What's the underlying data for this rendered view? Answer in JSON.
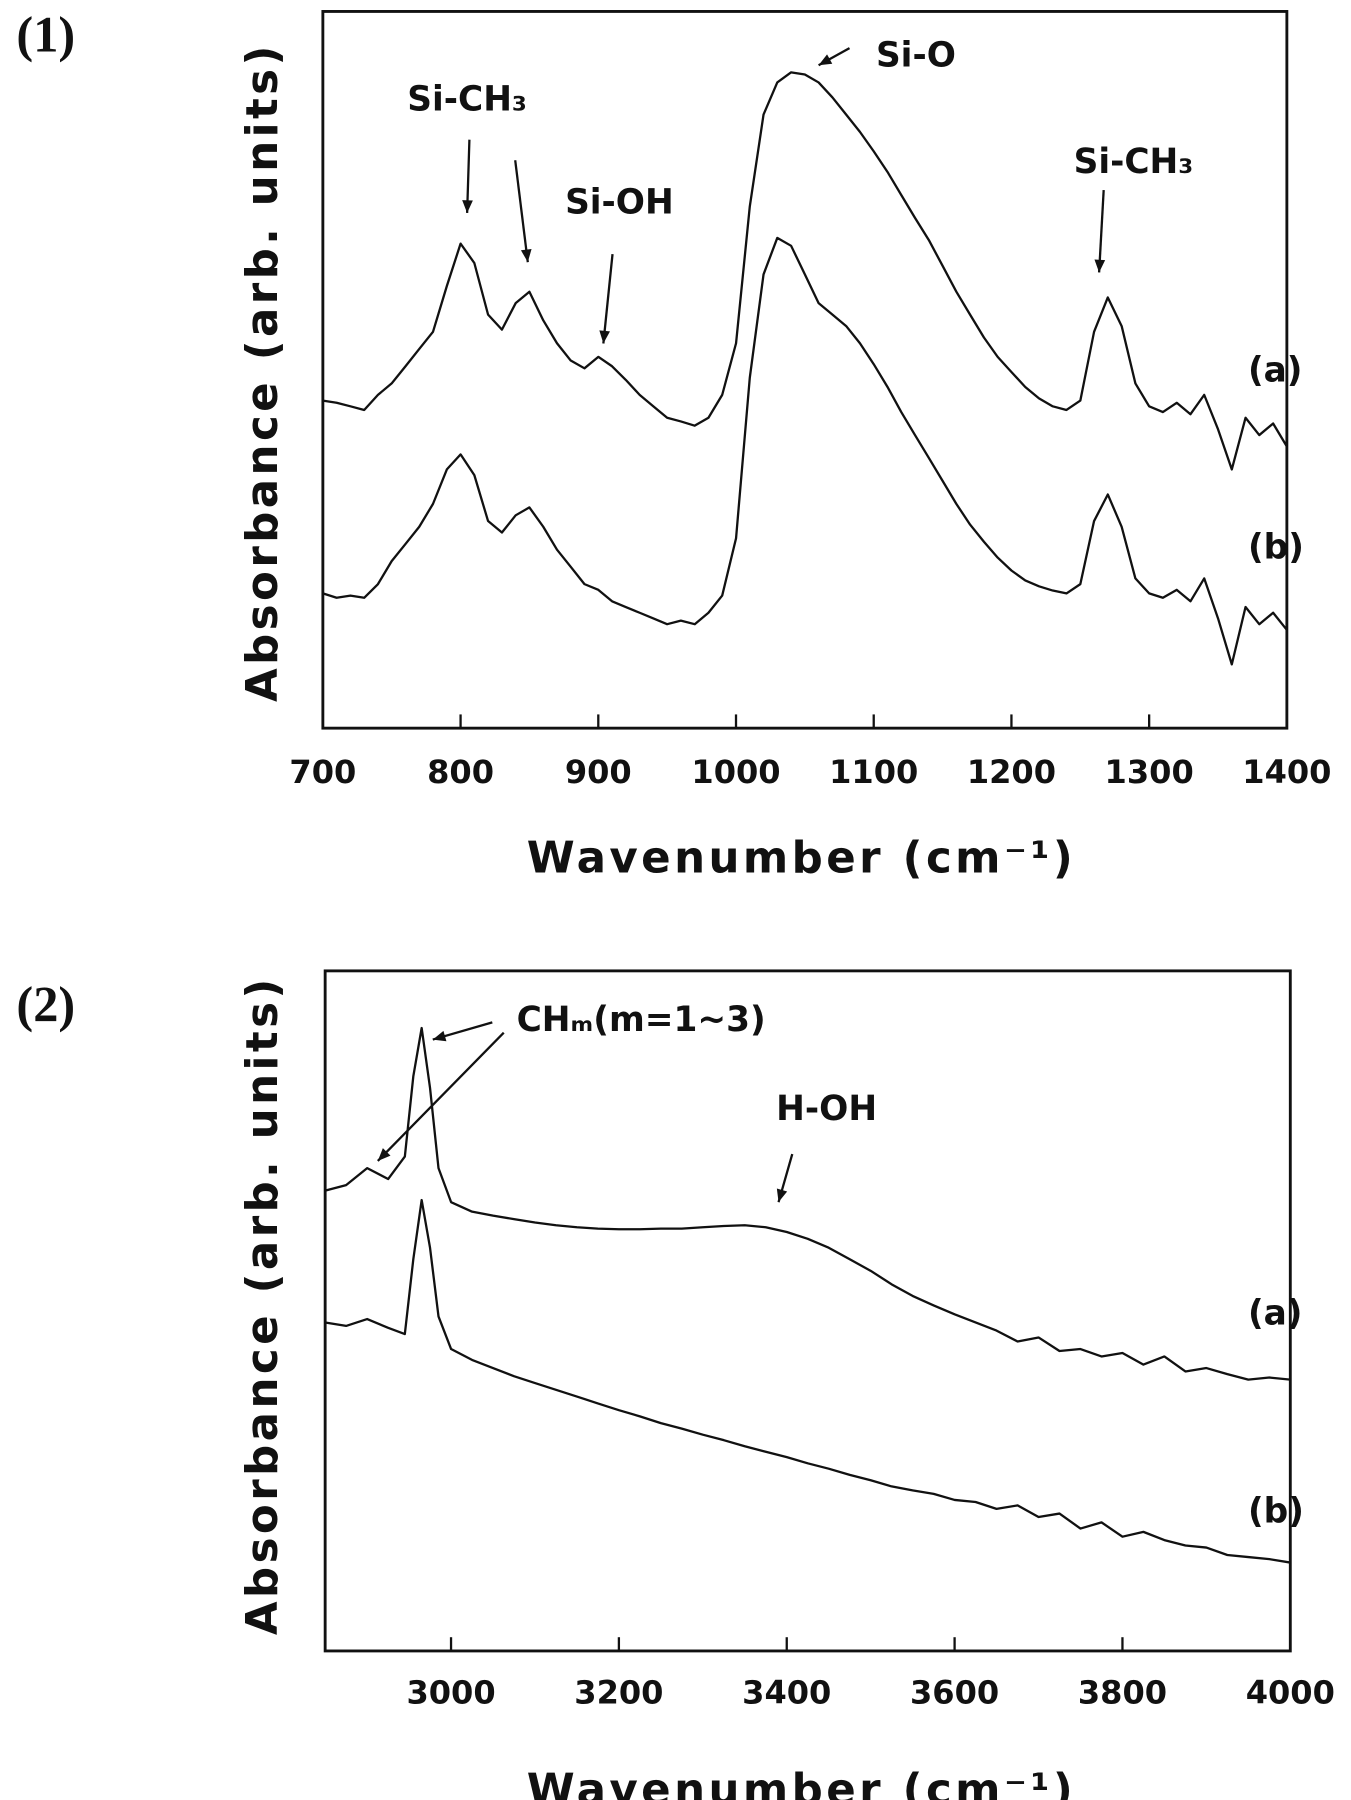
{
  "chart_data": [
    {
      "type": "line",
      "panel": "(1)",
      "xlabel": "Wavenumber (cm⁻¹)",
      "ylabel": "Absorbance (arb. units)",
      "xlim": [
        700,
        1400
      ],
      "xticks": [
        700,
        800,
        900,
        1000,
        1100,
        1200,
        1300,
        1400
      ],
      "ylim": [
        0,
        100
      ],
      "annotations": [
        "Si-CH₃",
        "Si-OH",
        "Si-O",
        "Si-CH₃"
      ],
      "x": [
        700,
        710,
        720,
        730,
        740,
        750,
        760,
        770,
        780,
        790,
        800,
        810,
        820,
        830,
        840,
        850,
        860,
        870,
        880,
        890,
        900,
        910,
        920,
        930,
        940,
        950,
        960,
        970,
        980,
        990,
        1000,
        1010,
        1020,
        1030,
        1040,
        1050,
        1060,
        1070,
        1080,
        1090,
        1100,
        1110,
        1120,
        1130,
        1140,
        1150,
        1160,
        1170,
        1180,
        1190,
        1200,
        1210,
        1220,
        1230,
        1240,
        1250,
        1260,
        1270,
        1280,
        1290,
        1300,
        1310,
        1320,
        1330,
        1340,
        1350,
        1360,
        1370,
        1380,
        1390,
        1400
      ],
      "series": [
        {
          "name": "(a)",
          "color": "#111111",
          "values": [
            45.7,
            45.4,
            44.9,
            44.4,
            46.5,
            48.1,
            50.5,
            52.9,
            55.3,
            61.7,
            67.6,
            64.9,
            57.7,
            55.6,
            59.3,
            60.9,
            56.9,
            53.7,
            51.3,
            50.2,
            51.8,
            50.5,
            48.6,
            46.5,
            44.9,
            43.3,
            42.8,
            42.2,
            43.3,
            46.5,
            53.7,
            72.8,
            85.6,
            90.1,
            91.5,
            91.2,
            90.1,
            88.0,
            85.6,
            83.2,
            80.5,
            77.6,
            74.4,
            71.2,
            68.1,
            64.5,
            60.9,
            57.7,
            54.5,
            51.8,
            49.7,
            47.6,
            46.0,
            44.9,
            44.4,
            45.7,
            55.3,
            60.1,
            56.1,
            48.1,
            44.9,
            44.1,
            45.4,
            43.8,
            46.5,
            41.7,
            36.1,
            43.3,
            40.9,
            42.5,
            39.3
          ]
        },
        {
          "name": "(b)",
          "color": "#111111",
          "values": [
            18.8,
            18.2,
            18.5,
            18.2,
            20.1,
            23.3,
            25.7,
            28.1,
            31.3,
            36.1,
            38.2,
            35.3,
            28.9,
            27.3,
            29.7,
            30.8,
            28.1,
            24.9,
            22.5,
            20.1,
            19.3,
            17.7,
            16.9,
            16.1,
            15.3,
            14.5,
            15.0,
            14.5,
            16.1,
            18.5,
            26.5,
            48.9,
            63.3,
            68.4,
            67.3,
            63.3,
            59.3,
            57.7,
            56.1,
            53.7,
            50.8,
            47.6,
            44.1,
            40.9,
            37.7,
            34.5,
            31.3,
            28.4,
            26.0,
            23.8,
            22.0,
            20.6,
            19.8,
            19.2,
            18.8,
            20.1,
            28.9,
            32.6,
            28.1,
            20.9,
            18.8,
            18.2,
            19.3,
            17.7,
            20.9,
            15.3,
            8.9,
            16.9,
            14.5,
            16.1,
            13.7
          ]
        }
      ]
    },
    {
      "type": "line",
      "panel": "(2)",
      "xlabel": "Wavenumber (cm⁻¹)",
      "ylabel": "Absorbance (arb. units)",
      "xlim": [
        2850,
        4000
      ],
      "xticks": [
        3000,
        3200,
        3400,
        3600,
        3800,
        4000
      ],
      "ylim": [
        0,
        100
      ],
      "annotations": [
        "CHₘ(m=1~3)",
        "H-OH"
      ],
      "x": [
        2850,
        2875,
        2900,
        2925,
        2945,
        2955,
        2965,
        2975,
        2985,
        3000,
        3025,
        3050,
        3075,
        3100,
        3125,
        3150,
        3175,
        3200,
        3225,
        3250,
        3275,
        3300,
        3325,
        3350,
        3375,
        3400,
        3425,
        3450,
        3475,
        3500,
        3525,
        3550,
        3575,
        3600,
        3625,
        3650,
        3675,
        3700,
        3725,
        3750,
        3775,
        3800,
        3825,
        3850,
        3875,
        3900,
        3925,
        3950,
        3975,
        4000
      ],
      "series": [
        {
          "name": "(a)",
          "color": "#111111",
          "values": [
            67.7,
            68.5,
            71.0,
            69.4,
            72.7,
            84.5,
            91.6,
            82.8,
            71.0,
            66.0,
            64.6,
            64.0,
            63.5,
            63.0,
            62.6,
            62.3,
            62.1,
            62.0,
            62.0,
            62.1,
            62.1,
            62.3,
            62.5,
            62.6,
            62.3,
            61.6,
            60.6,
            59.3,
            57.6,
            55.9,
            53.9,
            52.2,
            50.8,
            49.5,
            48.3,
            47.1,
            45.5,
            46.1,
            44.1,
            44.4,
            43.3,
            43.8,
            42.1,
            43.3,
            41.1,
            41.6,
            40.7,
            39.9,
            40.2,
            39.9
          ]
        },
        {
          "name": "(b)",
          "color": "#111111",
          "values": [
            48.3,
            47.8,
            48.8,
            47.5,
            46.6,
            57.6,
            66.3,
            59.3,
            49.2,
            44.4,
            42.8,
            41.6,
            40.4,
            39.4,
            38.4,
            37.4,
            36.4,
            35.4,
            34.5,
            33.5,
            32.7,
            31.8,
            31.0,
            30.1,
            29.3,
            28.5,
            27.6,
            26.8,
            25.9,
            25.1,
            24.2,
            23.6,
            23.1,
            22.2,
            21.9,
            20.9,
            21.4,
            19.7,
            20.2,
            18.0,
            18.9,
            16.8,
            17.5,
            16.3,
            15.5,
            15.2,
            14.1,
            13.8,
            13.5,
            13.0
          ]
        }
      ]
    }
  ]
}
